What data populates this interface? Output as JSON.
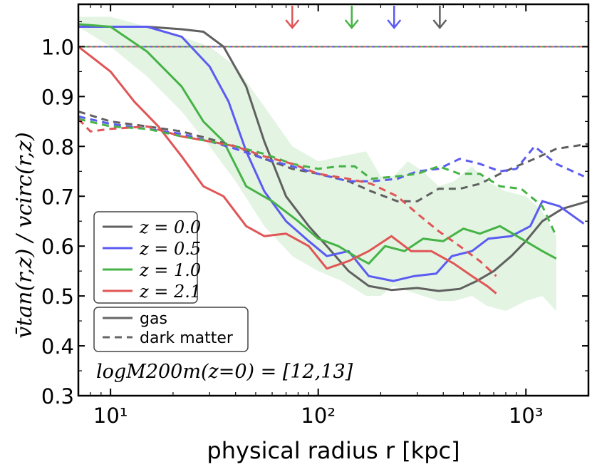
{
  "chart_data": {
    "type": "line",
    "xscale": "log",
    "xlim": [
      7,
      2000
    ],
    "ylim": [
      0.3,
      1.085
    ],
    "xlabel": "physical radius r [kpc]",
    "ylabel": "v̄tan(r,z) / vcirc(r,z)",
    "xticks": [
      {
        "value": 10,
        "label": "10¹"
      },
      {
        "value": 100,
        "label": "10²"
      },
      {
        "value": 1000,
        "label": "10³"
      }
    ],
    "yticks": [
      {
        "value": 0.3,
        "label": "0.3"
      },
      {
        "value": 0.4,
        "label": "0.4"
      },
      {
        "value": 0.5,
        "label": "0.5"
      },
      {
        "value": 0.6,
        "label": "0.6"
      },
      {
        "value": 0.7,
        "label": "0.7"
      },
      {
        "value": 0.8,
        "label": "0.8"
      },
      {
        "value": 0.9,
        "label": "0.9"
      },
      {
        "value": 1.0,
        "label": "1.0"
      }
    ],
    "reference_line": {
      "y": 1.0,
      "style": "dotted"
    },
    "annotation": "logM200m(z=0) = [12,13]",
    "legend_redshift": {
      "placement": "center-left",
      "entries": [
        {
          "label": "z = 0.0",
          "color": "#606060"
        },
        {
          "label": "z = 0.5",
          "color": "#5b5bf2"
        },
        {
          "label": "z = 1.0",
          "color": "#46b346"
        },
        {
          "label": "z = 2.1",
          "color": "#e05555"
        }
      ]
    },
    "legend_style": {
      "placement": "lower-left",
      "entries": [
        {
          "label": "gas",
          "style": "solid"
        },
        {
          "label": "dark matter",
          "style": "dashed"
        }
      ]
    },
    "virial_radius_arrows": [
      {
        "x": 75,
        "color": "#e05555"
      },
      {
        "x": 145,
        "color": "#46b346"
      },
      {
        "x": 232,
        "color": "#5b5bf2"
      },
      {
        "x": 385,
        "color": "#606060"
      }
    ],
    "band": {
      "series": "z = 1.0 gas",
      "color": "#46b346",
      "x": [
        7,
        10,
        15,
        22,
        30,
        40,
        55,
        75,
        100,
        130,
        170,
        200,
        230,
        270,
        320,
        380,
        450,
        550,
        650,
        800,
        1000,
        1200,
        1400
      ],
      "upper": [
        1.06,
        1.06,
        1.04,
        1.02,
        1.0,
        0.96,
        0.88,
        0.8,
        0.77,
        0.78,
        0.79,
        0.74,
        0.74,
        0.77,
        0.75,
        0.72,
        0.73,
        0.76,
        0.73,
        0.71,
        0.7,
        0.67,
        0.62
      ],
      "lower": [
        1.04,
        1.0,
        0.94,
        0.87,
        0.8,
        0.73,
        0.64,
        0.58,
        0.55,
        0.53,
        0.5,
        0.5,
        0.52,
        0.51,
        0.5,
        0.49,
        0.49,
        0.5,
        0.48,
        0.47,
        0.49,
        0.5,
        0.47
      ]
    },
    "series": [
      {
        "name": "z = 0.0 gas",
        "color": "#606060",
        "style": "solid",
        "x": [
          7,
          10,
          15,
          22,
          28,
          35,
          45,
          55,
          70,
          90,
          110,
          140,
          175,
          225,
          300,
          380,
          480,
          580,
          700,
          850,
          1000,
          1200,
          1500,
          2000
        ],
        "y": [
          1.04,
          1.04,
          1.04,
          1.035,
          1.03,
          1.0,
          0.92,
          0.81,
          0.7,
          0.64,
          0.6,
          0.55,
          0.52,
          0.512,
          0.516,
          0.51,
          0.514,
          0.53,
          0.55,
          0.58,
          0.61,
          0.65,
          0.675,
          0.69
        ]
      },
      {
        "name": "z = 0.5 gas",
        "color": "#5b5bf2",
        "style": "solid",
        "x": [
          7,
          10,
          15,
          22,
          30,
          37,
          45,
          55,
          70,
          90,
          110,
          140,
          175,
          230,
          290,
          370,
          440,
          550,
          660,
          850,
          1050,
          1200,
          1450,
          1900
        ],
        "y": [
          1.04,
          1.04,
          1.04,
          1.02,
          0.96,
          0.89,
          0.79,
          0.71,
          0.65,
          0.61,
          0.58,
          0.59,
          0.54,
          0.53,
          0.54,
          0.545,
          0.58,
          0.59,
          0.615,
          0.62,
          0.64,
          0.69,
          0.68,
          0.645
        ]
      },
      {
        "name": "z = 1.0 gas",
        "color": "#46b346",
        "style": "solid",
        "x": [
          7,
          10,
          15,
          22,
          28,
          35,
          45,
          60,
          80,
          100,
          125,
          150,
          175,
          210,
          260,
          320,
          400,
          500,
          600,
          750,
          950,
          1200,
          1400
        ],
        "y": [
          1.045,
          1.04,
          0.99,
          0.92,
          0.85,
          0.81,
          0.72,
          0.69,
          0.65,
          0.615,
          0.6,
          0.58,
          0.565,
          0.6,
          0.59,
          0.615,
          0.61,
          0.635,
          0.625,
          0.64,
          0.615,
          0.59,
          0.575
        ]
      },
      {
        "name": "z = 2.1 gas",
        "color": "#e05555",
        "style": "solid",
        "x": [
          7,
          10,
          13,
          17,
          22,
          28,
          35,
          45,
          55,
          70,
          90,
          110,
          140,
          175,
          225,
          280,
          350,
          450,
          550,
          650,
          720
        ],
        "y": [
          1.0,
          0.95,
          0.89,
          0.84,
          0.78,
          0.72,
          0.7,
          0.64,
          0.62,
          0.625,
          0.6,
          0.555,
          0.57,
          0.59,
          0.62,
          0.59,
          0.59,
          0.565,
          0.54,
          0.52,
          0.505
        ]
      },
      {
        "name": "z = 0.0 dark matter",
        "color": "#606060",
        "style": "dashed",
        "x": [
          7,
          10,
          15,
          22,
          30,
          40,
          55,
          75,
          100,
          140,
          180,
          240,
          300,
          380,
          480,
          600,
          750,
          900,
          1100,
          1400,
          2000
        ],
        "y": [
          0.87,
          0.85,
          0.84,
          0.83,
          0.815,
          0.8,
          0.775,
          0.755,
          0.745,
          0.73,
          0.71,
          0.69,
          0.69,
          0.715,
          0.715,
          0.725,
          0.745,
          0.76,
          0.775,
          0.795,
          0.805
        ]
      },
      {
        "name": "z = 0.5 dark matter",
        "color": "#5b5bf2",
        "style": "dashed",
        "x": [
          7,
          10,
          15,
          22,
          30,
          40,
          55,
          75,
          100,
          140,
          180,
          240,
          300,
          380,
          480,
          600,
          750,
          900,
          1100,
          1400,
          1900
        ],
        "y": [
          0.86,
          0.845,
          0.835,
          0.825,
          0.81,
          0.795,
          0.775,
          0.76,
          0.745,
          0.73,
          0.73,
          0.735,
          0.75,
          0.755,
          0.775,
          0.765,
          0.75,
          0.755,
          0.8,
          0.765,
          0.74
        ]
      },
      {
        "name": "z = 1.0 dark matter",
        "color": "#46b346",
        "style": "dashed",
        "x": [
          7,
          10,
          15,
          22,
          30,
          40,
          55,
          75,
          100,
          125,
          150,
          180,
          240,
          300,
          380,
          480,
          600,
          750,
          950,
          1200,
          1400
        ],
        "y": [
          0.855,
          0.84,
          0.835,
          0.82,
          0.81,
          0.8,
          0.785,
          0.765,
          0.755,
          0.76,
          0.76,
          0.735,
          0.74,
          0.745,
          0.76,
          0.745,
          0.745,
          0.72,
          0.715,
          0.68,
          0.62
        ]
      },
      {
        "name": "z = 2.1 dark matter",
        "color": "#e05555",
        "style": "dashed",
        "x": [
          7,
          8,
          10,
          15,
          22,
          30,
          40,
          55,
          75,
          100,
          140,
          180,
          240,
          300,
          380,
          480,
          600,
          720
        ],
        "y": [
          0.855,
          0.83,
          0.835,
          0.84,
          0.82,
          0.81,
          0.8,
          0.78,
          0.765,
          0.745,
          0.735,
          0.725,
          0.7,
          0.665,
          0.63,
          0.6,
          0.57,
          0.54
        ]
      }
    ]
  }
}
